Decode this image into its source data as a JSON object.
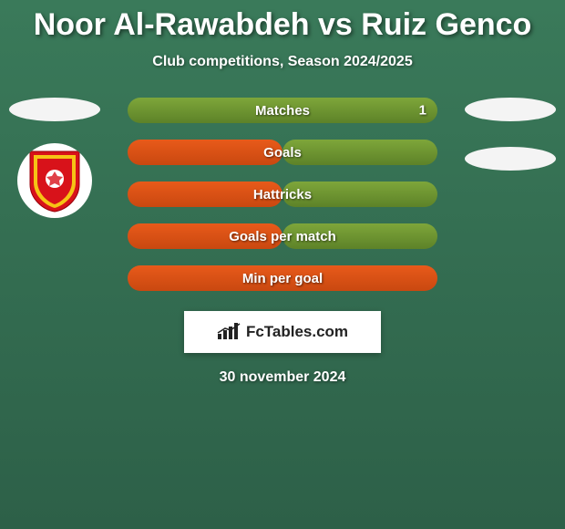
{
  "title": "Noor Al-Rawabdeh vs Ruiz Genco",
  "subtitle": "Club competitions, Season 2024/2025",
  "date": "30 november 2024",
  "credit": "FcTables.com",
  "colors": {
    "left_fill": "#e85a1a",
    "right_fill": "#7ea63a",
    "bg_top": "#3a7a5a",
    "bg_bottom": "#2d6048"
  },
  "bars": [
    {
      "label": "Matches",
      "left_pct": 0,
      "right_pct": 100,
      "left_val": "",
      "right_val": "1"
    },
    {
      "label": "Goals",
      "left_pct": 50,
      "right_pct": 50,
      "left_val": "",
      "right_val": ""
    },
    {
      "label": "Hattricks",
      "left_pct": 50,
      "right_pct": 50,
      "left_val": "",
      "right_val": ""
    },
    {
      "label": "Goals per match",
      "left_pct": 50,
      "right_pct": 50,
      "left_val": "",
      "right_val": ""
    },
    {
      "label": "Min per goal",
      "left_pct": 100,
      "right_pct": 0,
      "left_val": "",
      "right_val": ""
    }
  ],
  "badge": {
    "shield_red": "#d8121a",
    "shield_yellow": "#f6c315",
    "ball_white": "#ffffff"
  }
}
